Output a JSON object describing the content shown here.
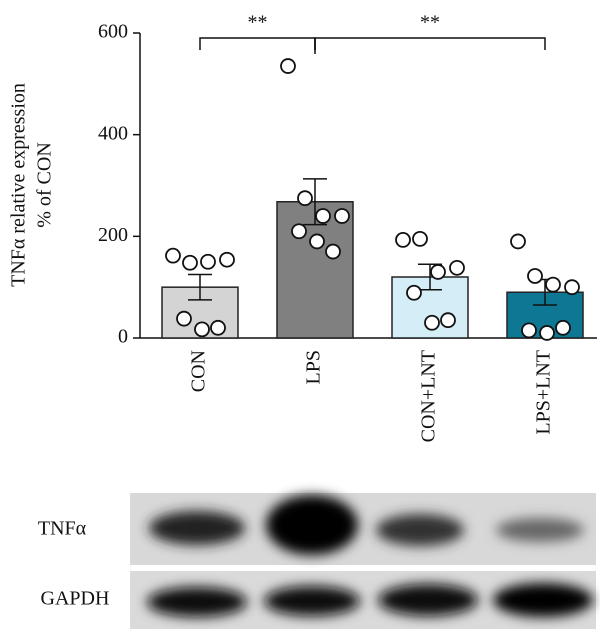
{
  "chart_data": {
    "type": "bar",
    "y_label": [
      "TNFα relative expression",
      "% of CON"
    ],
    "categories": [
      "CON",
      "LPS",
      "CON+LNT",
      "LPS+LNT"
    ],
    "values": [
      100,
      268,
      120,
      90
    ],
    "errors": [
      25,
      45,
      25,
      25
    ],
    "colors": [
      "#d4d4d4",
      "#808080",
      "#d4edf7",
      "#0e7894"
    ],
    "points": [
      [
        162,
        148,
        150,
        154,
        38,
        17,
        20
      ],
      [
        535,
        275,
        240,
        240,
        210,
        190,
        170
      ],
      [
        193,
        195,
        130,
        138,
        89,
        30,
        35
      ],
      [
        190,
        122,
        105,
        100,
        15,
        10,
        20
      ]
    ],
    "ylim": [
      0,
      600
    ],
    "yticks": [
      0,
      200,
      400,
      600
    ],
    "significance": [
      "**",
      "**"
    ],
    "blot_labels": [
      "TNFα",
      "GAPDH"
    ]
  }
}
